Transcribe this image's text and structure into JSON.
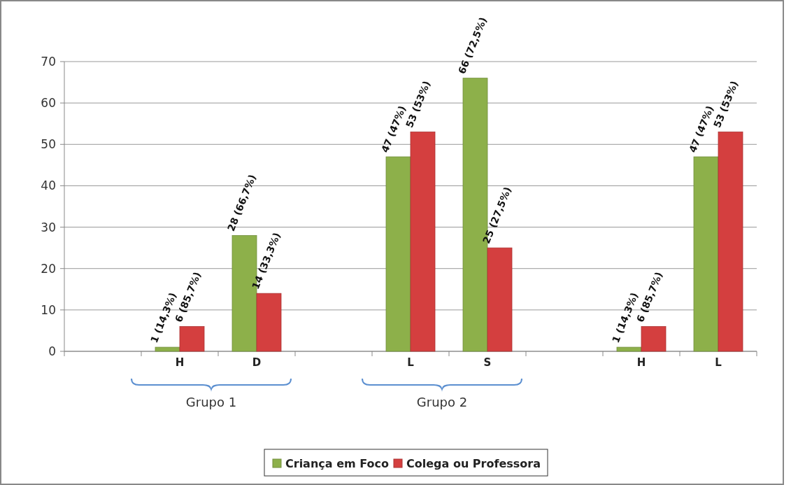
{
  "chart_data": {
    "type": "bar",
    "categories": [
      null,
      "H",
      "D",
      null,
      "L",
      "S",
      null,
      "H",
      "L"
    ],
    "series": [
      {
        "name": "Criança em Foco",
        "color": "#8db04a",
        "values": [
          null,
          1,
          28,
          null,
          47,
          66,
          null,
          1,
          47
        ],
        "value_labels": [
          null,
          "1 (14,3%)",
          "28 (66,7%)",
          null,
          "47 (47%)",
          "66 (72,5%)",
          null,
          "1 (14,3%)",
          "47 (47%)"
        ]
      },
      {
        "name": "Colega ou Professora",
        "color": "#d43f3f",
        "values": [
          null,
          6,
          14,
          null,
          53,
          25,
          null,
          6,
          53
        ],
        "value_labels": [
          null,
          "6 (85,7%)",
          "14 (33,3%)",
          null,
          "53 (53%)",
          "25 (27,5%)",
          null,
          "6 (85,7%)",
          "53 (53%)"
        ]
      }
    ],
    "ylim": [
      0,
      70
    ],
    "yticks": [
      0,
      10,
      20,
      30,
      40,
      50,
      60,
      70
    ],
    "grid": "y",
    "legend": "bottom",
    "annotations": [
      "Grupo 1",
      "Grupo 2"
    ]
  }
}
